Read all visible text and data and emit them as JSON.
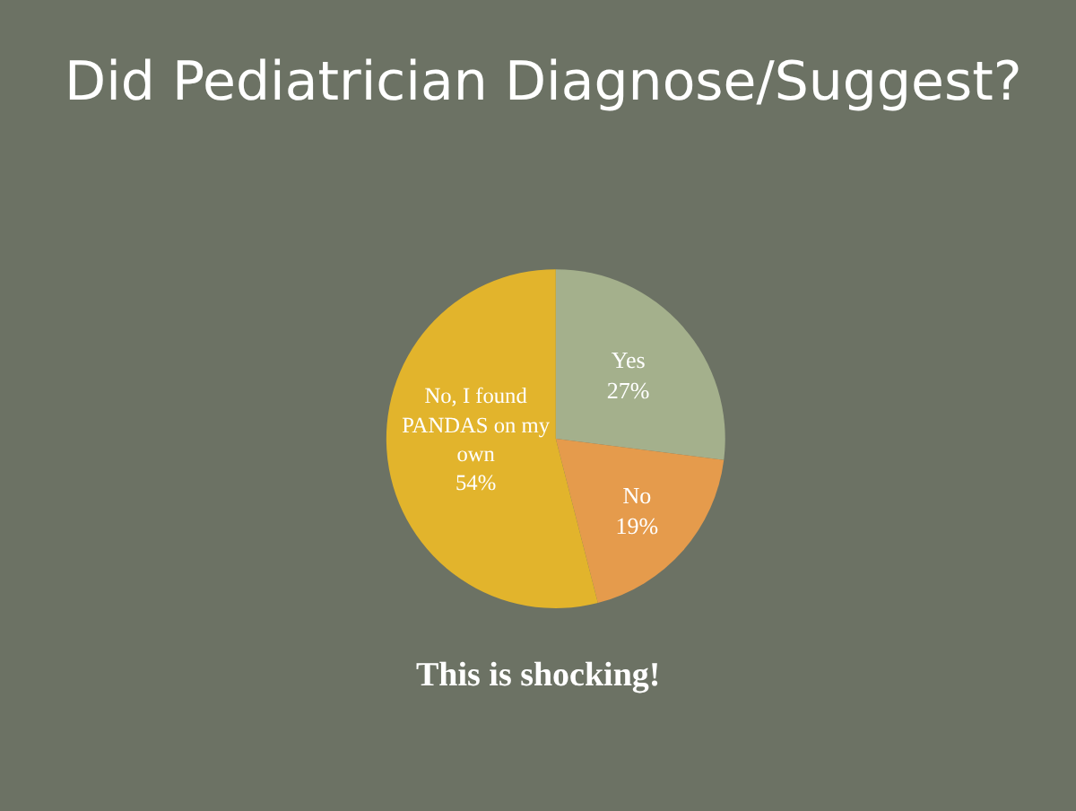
{
  "chart_data": {
    "type": "pie",
    "title": "Did Pediatrician Diagnose/Suggest?",
    "categories": [
      "Yes",
      "No",
      "No, I found PANDAS on my own"
    ],
    "values": [
      27,
      19,
      54
    ],
    "value_labels": [
      "27%",
      "19%",
      "54%"
    ],
    "colors": [
      "#a4b08c",
      "#e59b4c",
      "#e2b42c"
    ],
    "annotations": [
      "This is shocking!"
    ],
    "legend": false
  }
}
